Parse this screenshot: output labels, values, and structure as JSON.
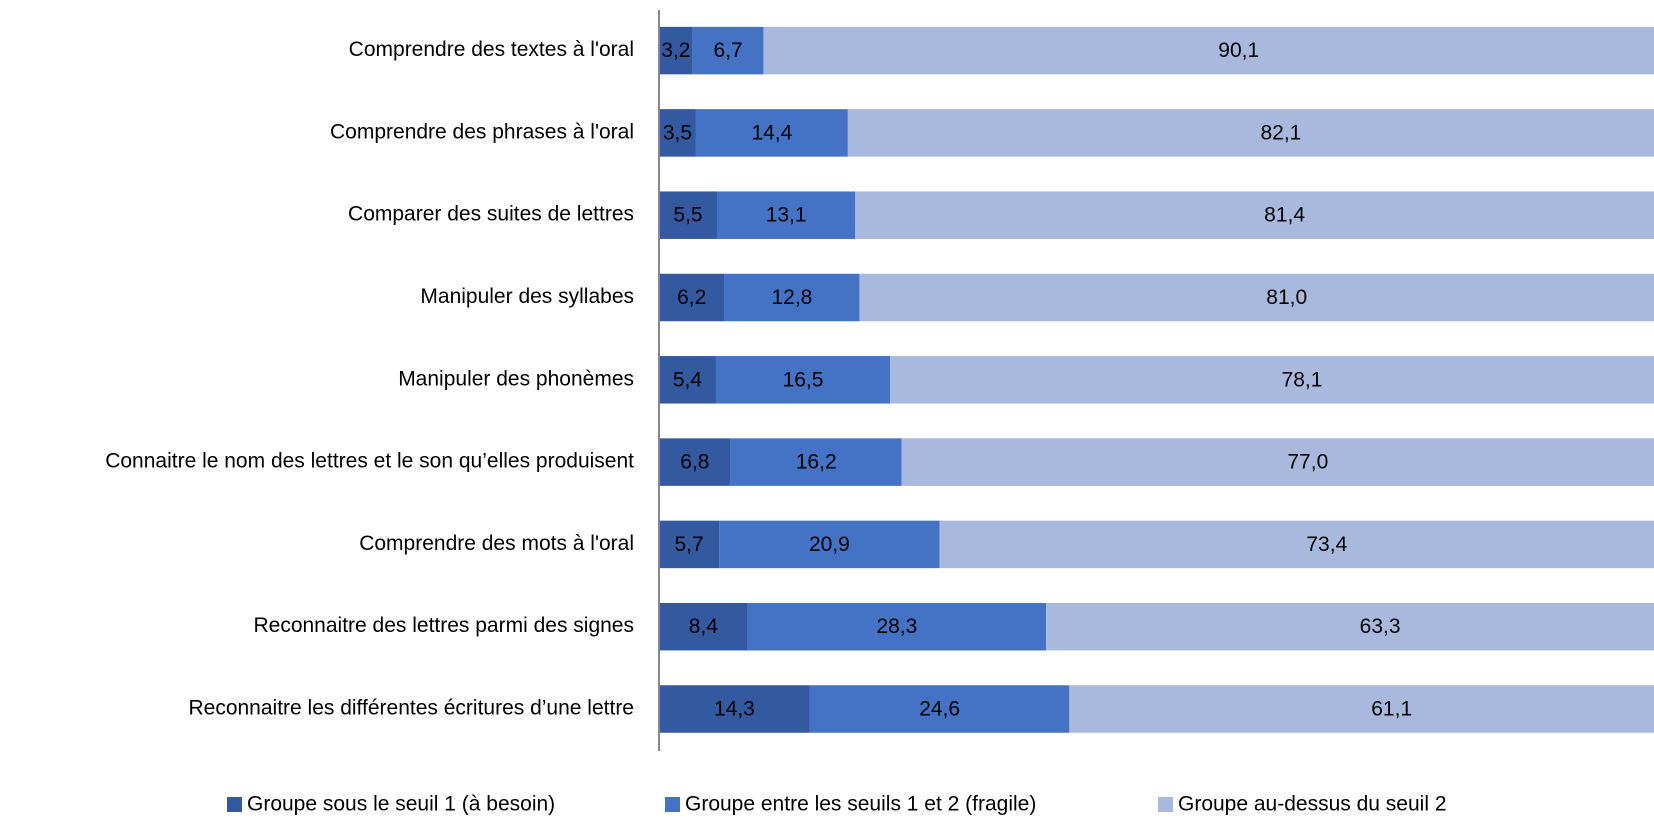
{
  "chart_data": {
    "type": "stacked-bar-horizontal",
    "categories": [
      "Comprendre des textes à l'oral",
      "Comprendre des phrases à l'oral",
      "Comparer des suites de lettres",
      "Manipuler des syllabes",
      "Manipuler des phonèmes",
      "Connaitre le nom des lettres et le son qu’elles produisent",
      "Comprendre des mots à l'oral",
      "Reconnaitre des lettres parmi des signes",
      "Reconnaitre les différentes écritures d’une lettre"
    ],
    "xlim": [
      0,
      100
    ],
    "legend": "bottom",
    "series": [
      {
        "name": "Groupe sous le seuil 1 (à besoin)",
        "color": "#335aa0",
        "values": [
          3.2,
          3.5,
          5.5,
          6.2,
          5.4,
          6.8,
          5.7,
          8.4,
          14.3
        ],
        "value_labels": [
          "3,2",
          "3,5",
          "5,5",
          "6,2",
          "5,4",
          "6,8",
          "5,7",
          "8,4",
          "14,3"
        ]
      },
      {
        "name": "Groupe entre les seuils 1 et 2 (fragile)",
        "color": "#4472c4",
        "values": [
          6.7,
          14.4,
          13.1,
          12.8,
          16.5,
          16.2,
          20.9,
          28.3,
          24.6
        ],
        "value_labels": [
          "6,7",
          "14,4",
          "13,1",
          "12,8",
          "16,5",
          "16,2",
          "20,9",
          "28,3",
          "24,6"
        ]
      },
      {
        "name": "Groupe au-dessus du seuil 2",
        "color": "#a9b8dd",
        "values": [
          90.1,
          82.1,
          81.4,
          81.0,
          78.1,
          77.0,
          73.4,
          63.3,
          61.1
        ],
        "value_labels": [
          "90,1",
          "82,1",
          "81,4",
          "81,0",
          "78,1",
          "77,0",
          "73,4",
          "63,3",
          "61,1"
        ]
      }
    ]
  }
}
